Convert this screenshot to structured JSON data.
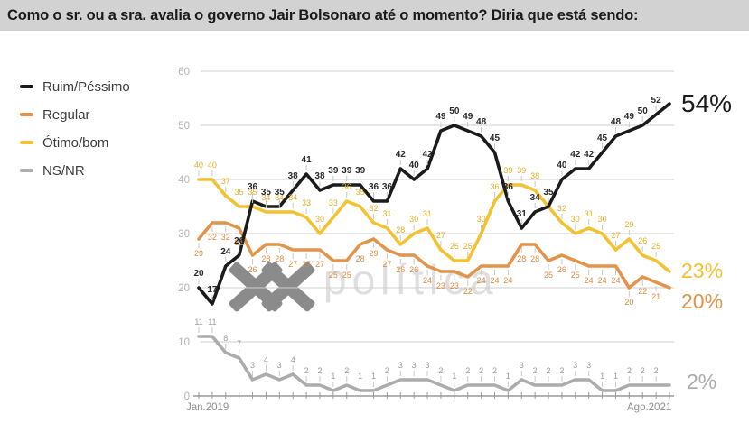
{
  "header": {
    "title": "Como o sr. ou a sra. avalia o governo Jair Bolsonaro até o momento? Diria que está sendo:"
  },
  "watermark": {
    "text": "política"
  },
  "chart_data": {
    "type": "line",
    "title": "Como o sr. ou a sra. avalia o governo Jair Bolsonaro até o momento? Diria que está sendo:",
    "xlabel": "",
    "ylabel": "",
    "ylim": [
      0,
      60
    ],
    "grid": true,
    "legend_position": "left",
    "y_axis": {
      "ticks": [
        60,
        50,
        40,
        30,
        20,
        10,
        0
      ]
    },
    "x_axis": {
      "start_label": "Jan.2019",
      "end_label": "Ago.2021"
    },
    "series": [
      {
        "name": "Ruim/Péssimo",
        "color": "#1b1b1b",
        "label_color": "#2a2a2a",
        "end_value_label": "54%",
        "label_side": "above",
        "values": [
          20,
          17,
          24,
          26,
          36,
          35,
          35,
          38,
          41,
          38,
          39,
          39,
          39,
          36,
          36,
          42,
          40,
          42,
          49,
          50,
          49,
          48,
          45,
          36,
          31,
          34,
          35,
          40,
          42,
          42,
          45,
          48,
          49,
          50,
          52,
          54
        ]
      },
      {
        "name": "Regular",
        "color": "#E2944A",
        "label_color": "#DB8C42",
        "end_value_label": "20%",
        "label_side": "below",
        "values": [
          29,
          32,
          32,
          31,
          26,
          28,
          28,
          27,
          27,
          27,
          25,
          25,
          28,
          29,
          27,
          26,
          26,
          24,
          23,
          23,
          22,
          24,
          24,
          24,
          28,
          28,
          25,
          26,
          25,
          24,
          24,
          24,
          20,
          22,
          21,
          20
        ]
      },
      {
        "name": "Ótimo/bom",
        "color": "#F2C230",
        "label_color": "#E4B02A",
        "end_value_label": "23%",
        "label_side": "above",
        "values": [
          40,
          40,
          37,
          35,
          35,
          34,
          34,
          34,
          33,
          30,
          33,
          36,
          35,
          32,
          31,
          28,
          30,
          31,
          27,
          25,
          25,
          30,
          36,
          39,
          39,
          38,
          35,
          32,
          30,
          31,
          30,
          27,
          29,
          26,
          25,
          23
        ]
      },
      {
        "name": "NS/NR",
        "color": "#ACACAC",
        "label_color": "#9C9C9C",
        "end_value_label": "2%",
        "label_side": "above",
        "values": [
          11,
          11,
          8,
          7,
          3,
          4,
          3,
          4,
          2,
          2,
          1,
          2,
          1,
          1,
          2,
          3,
          3,
          3,
          2,
          1,
          2,
          2,
          2,
          1,
          3,
          2,
          2,
          2,
          3,
          3,
          1,
          1,
          2,
          2,
          2,
          2
        ]
      }
    ]
  }
}
